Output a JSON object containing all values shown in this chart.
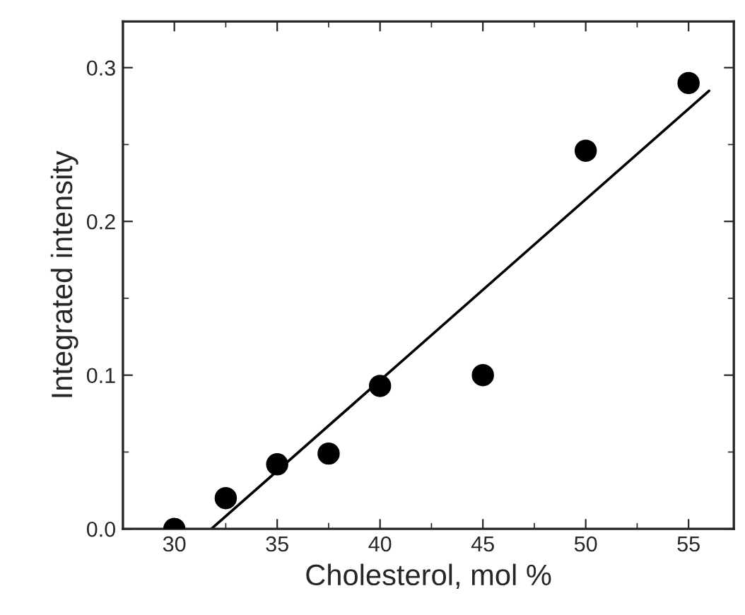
{
  "chart_data": {
    "type": "scatter",
    "xlabel": "Cholesterol, mol %",
    "ylabel": "Integrated intensity",
    "x": [
      30,
      32.5,
      35,
      37.5,
      40,
      45,
      50,
      55
    ],
    "series": [
      {
        "color": "#000000",
        "values": [
          0,
          0.02,
          0.042,
          0.049,
          0.093,
          0.1,
          0.246,
          0.29
        ],
        "marker": "circle"
      },
      {
        "type": "line",
        "color": "#000000",
        "x": [
          31.8,
          56
        ],
        "values": [
          0,
          0.285
        ],
        "marker": "none"
      }
    ],
    "xlim": [
      27.5,
      57.2
    ],
    "xticks": [
      30,
      35,
      40,
      45,
      50,
      55
    ],
    "ylim": [
      0,
      0.33
    ],
    "yticks": [
      {
        "value": 0,
        "label": "0.0"
      },
      {
        "value": 0.1,
        "label": "0.1"
      },
      {
        "value": 0.2,
        "label": "0.2"
      },
      {
        "value": 0.3,
        "label": "0.3"
      }
    ],
    "grid": false,
    "legend": false
  }
}
